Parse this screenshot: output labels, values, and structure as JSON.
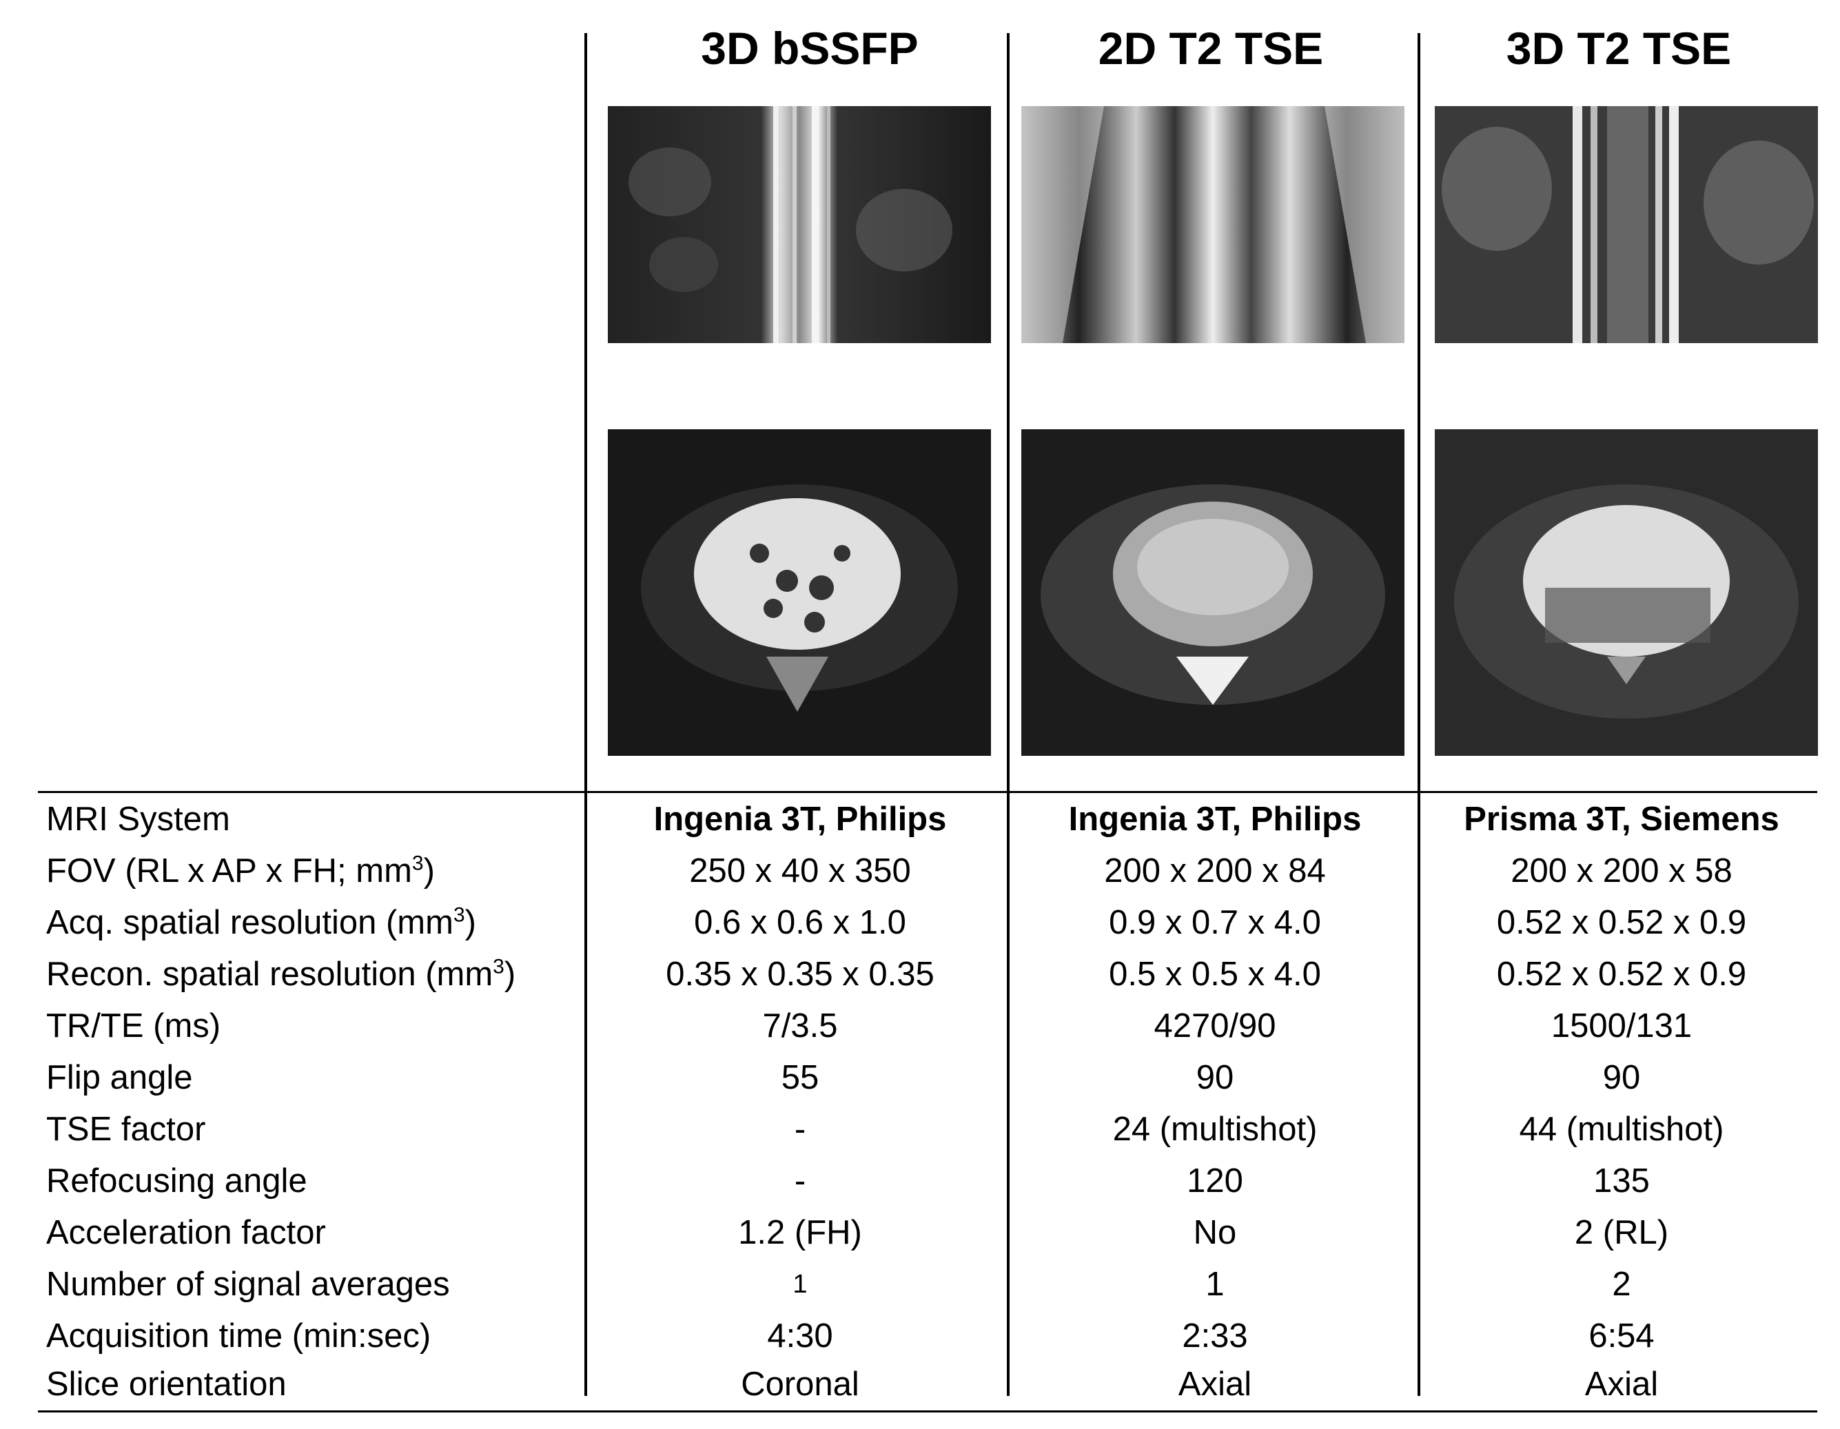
{
  "columns": [
    {
      "header": "3D bSSFP"
    },
    {
      "header": "2D T2 TSE"
    },
    {
      "header": "3D T2 TSE"
    }
  ],
  "images": {
    "top_row": [
      "coronal-mri-3d-bssfp",
      "coronal-mri-2d-t2-tse",
      "coronal-mri-3d-t2-tse"
    ],
    "bottom_row": [
      "axial-mri-3d-bssfp",
      "axial-mri-2d-t2-tse",
      "axial-mri-3d-t2-tse"
    ]
  },
  "table": {
    "rows": [
      {
        "label": "MRI System",
        "values": [
          "Ingenia 3T, Philips",
          "Ingenia 3T, Philips",
          "Prisma 3T, Siemens"
        ]
      },
      {
        "label": "FOV (RL x AP x FH; mm",
        "label_sup": "3",
        "label_end": ")",
        "values": [
          "250 x 40 x 350",
          "200 x 200 x 84",
          "200 x 200 x 58"
        ]
      },
      {
        "label": "Acq. spatial resolution (mm",
        "label_sup": "3",
        "label_end": ")",
        "values": [
          "0.6 x 0.6 x 1.0",
          "0.9 x 0.7 x 4.0",
          "0.52 x 0.52 x 0.9"
        ]
      },
      {
        "label": "Recon. spatial resolution (mm",
        "label_sup": "3",
        "label_end": ")",
        "values": [
          "0.35 x 0.35 x 0.35",
          "0.5 x 0.5 x 4.0",
          "0.52 x 0.52 x 0.9"
        ]
      },
      {
        "label": "TR/TE (ms)",
        "values": [
          "7/3.5",
          "4270/90",
          "1500/131"
        ]
      },
      {
        "label": "Flip angle",
        "values": [
          "55",
          "90",
          "90"
        ]
      },
      {
        "label": "TSE factor",
        "values": [
          "-",
          "24 (multishot)",
          "44 (multishot)"
        ]
      },
      {
        "label": "Refocusing angle",
        "values": [
          "-",
          "120",
          "135"
        ]
      },
      {
        "label": "Acceleration factor",
        "values": [
          "1.2 (FH)",
          "No",
          "2 (RL)"
        ]
      },
      {
        "label": "Number of signal averages",
        "values": [
          "1",
          "1",
          "2"
        ]
      },
      {
        "label": "Acquisition time (min:sec)",
        "values": [
          "4:30",
          "2:33",
          "6:54"
        ]
      },
      {
        "label": "Slice orientation",
        "values": [
          "Coronal",
          "Axial",
          "Axial"
        ]
      }
    ]
  }
}
